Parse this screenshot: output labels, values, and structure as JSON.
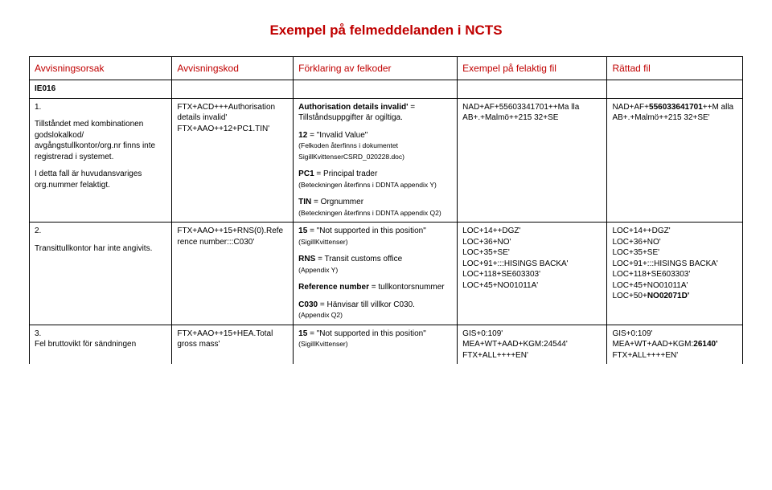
{
  "title": "Exempel på felmeddelanden i NCTS",
  "columns": [
    "Avvisningsorsak",
    "Avvisningskod",
    "Förklaring av felkoder",
    "Exempel på felaktig fil",
    "Rättad fil"
  ],
  "section": "IE016",
  "rows": [
    {
      "c1": {
        "num": "1.",
        "body": "Tillståndet med kombinationen godslokalkod/ avgångstullkontor/org.nr finns inte registrerad i systemet.",
        "body2": "I detta fall är huvudansvariges org.nummer felaktigt."
      },
      "c2": {
        "l1": "FTX+ACD+++Authorisation details invalid'",
        "l2": "FTX+AAO++12+PC1.TIN'"
      },
      "c3": {
        "a_bold": "Authorisation details invalid'",
        "a_rest": " = Tillståndsuppgifter är ogiltiga.",
        "b_bold": "12",
        "b_rest": " = \"Invalid Value\"",
        "b_note": "(Felkoden återfinns i dokumentet SigillKvittenserCSRD_020228.doc)",
        "c_bold": "PC1",
        "c_rest": " = Principal trader",
        "c_note": "(Beteckningen återfinns i DDNTA appendix Y)",
        "d_bold": "TIN",
        "d_rest": " = Orgnummer",
        "d_note": "(Beteckningen återfinns i DDNTA appendix Q2)"
      },
      "c4": "NAD+AF+55603341701++Ma lla AB+.+Malmö++215 32+SE",
      "c5": {
        "pre": "NAD+AF+",
        "bold": "556033641701",
        "post": "++M alla AB+.+Malmö++215 32+SE'"
      }
    },
    {
      "c1": {
        "num": "2.",
        "body": "Transittullkontor har inte angivits."
      },
      "c2": {
        "l1": "FTX+AAO++15+RNS(0).Refe rence number:::C030'"
      },
      "c3": {
        "a_bold": "15",
        "a_rest": " = \"Not supported in this position\"",
        "a_note": "(SigillKvittenser)",
        "b_bold": "RNS",
        "b_rest": " = Transit customs office",
        "b_note": "(Appendix Y)",
        "c_bold": "Reference number",
        "c_rest": " = tullkontorsnummer",
        "d_bold": "C030",
        "d_rest": " = Hänvisar till villkor C030.",
        "d_note": "(Appendix Q2)"
      },
      "c4": "LOC+14++DGZ'\nLOC+36+NO'\nLOC+35+SE'\nLOC+91+:::HISINGS BACKA'\nLOC+118+SE603303'\nLOC+45+NO01011A'",
      "c5": {
        "lines": [
          "LOC+14++DGZ'",
          "LOC+36+NO'",
          "LOC+35+SE'",
          "LOC+91+:::HISINGS BACKA'",
          "LOC+118+SE603303'",
          "LOC+45+NO01011A'"
        ],
        "extra_pre": "LOC+50+",
        "extra_bold": "NO02071D'"
      }
    },
    {
      "c1": {
        "num": "3.",
        "body": "Fel bruttovikt för sändningen"
      },
      "c2": {
        "l1": "FTX+AAO++15+HEA.Total gross mass'"
      },
      "c3": {
        "a_bold": "15",
        "a_rest": " = \"Not supported in this position\"",
        "a_note": "(SigillKvittenser)"
      },
      "c4": "GIS+0:109'\nMEA+WT+AAD+KGM:24544'\nFTX+ALL++++EN'",
      "c5": {
        "l1": "GIS+0:109'",
        "l2_pre": "MEA+WT+AAD+KGM:",
        "l2_bold": "26140'",
        "l3": "FTX+ALL++++EN'"
      }
    }
  ]
}
